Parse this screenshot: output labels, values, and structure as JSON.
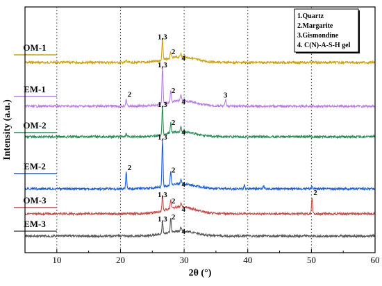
{
  "chart_data": {
    "type": "line",
    "xlabel": "2θ (°)",
    "ylabel": "Intensity (a.u.)",
    "xlim": [
      5,
      60
    ],
    "xticks": [
      "10",
      "20",
      "30",
      "40",
      "50",
      "60"
    ],
    "grid": "vertical dotted lines at x = 10, 20, 30, 40, 50",
    "legend": {
      "placement": "top-right",
      "entries": [
        "1.Quartz",
        "2.Margarite",
        "3.Gismondine",
        "4. C(N)-A-S-H gel"
      ]
    },
    "series": [
      {
        "name": "OM-1",
        "color": "#c9a21a",
        "peaks": [
          {
            "x": 26.6,
            "rel": 0.95,
            "label": "1,3"
          },
          {
            "x": 27.9,
            "rel": 0.28,
            "label": "2"
          },
          {
            "x": 29.5,
            "rel": 0.18,
            "label": "4"
          },
          {
            "x": 20.9,
            "rel": 0.1
          }
        ]
      },
      {
        "name": "EM-1",
        "color": "#b87fe0",
        "peaks": [
          {
            "x": 20.9,
            "rel": 0.2,
            "label": "2"
          },
          {
            "x": 26.6,
            "rel": 1.0,
            "label": "1,3"
          },
          {
            "x": 27.9,
            "rel": 0.3,
            "label": "2"
          },
          {
            "x": 29.5,
            "rel": 0.18,
            "label": "4"
          },
          {
            "x": 36.5,
            "rel": 0.18,
            "label": "3"
          }
        ]
      },
      {
        "name": "OM-2",
        "color": "#2e8b57",
        "peaks": [
          {
            "x": 26.6,
            "rel": 1.0,
            "label": "1,3"
          },
          {
            "x": 27.9,
            "rel": 0.35,
            "label": "2"
          },
          {
            "x": 29.5,
            "rel": 0.2,
            "label": "4"
          },
          {
            "x": 20.9,
            "rel": 0.12
          }
        ]
      },
      {
        "name": "EM-2",
        "color": "#1f5fd6",
        "peaks": [
          {
            "x": 20.9,
            "rel": 0.35,
            "label": "2"
          },
          {
            "x": 26.6,
            "rel": 1.0,
            "label": "1,3"
          },
          {
            "x": 27.9,
            "rel": 0.3,
            "label": "2"
          },
          {
            "x": 29.5,
            "rel": 0.1,
            "label": "4"
          },
          {
            "x": 39.5,
            "rel": 0.08
          },
          {
            "x": 42.5,
            "rel": 0.06
          },
          {
            "x": 50.1,
            "rel": 0.06
          }
        ]
      },
      {
        "name": "OM-3",
        "color": "#c0504d",
        "peaks": [
          {
            "x": 26.6,
            "rel": 0.7,
            "label": "1,3"
          },
          {
            "x": 27.9,
            "rel": 0.4,
            "label": "2"
          },
          {
            "x": 29.5,
            "rel": 0.2,
            "label": "4"
          },
          {
            "x": 50.1,
            "rel": 0.8,
            "label": "2"
          }
        ]
      },
      {
        "name": "EM-3",
        "color": "#555555",
        "peaks": [
          {
            "x": 26.6,
            "rel": 0.6,
            "label": "1,3"
          },
          {
            "x": 27.9,
            "rel": 0.7,
            "label": "2"
          },
          {
            "x": 29.5,
            "rel": 0.2,
            "label": "4"
          }
        ]
      }
    ]
  }
}
